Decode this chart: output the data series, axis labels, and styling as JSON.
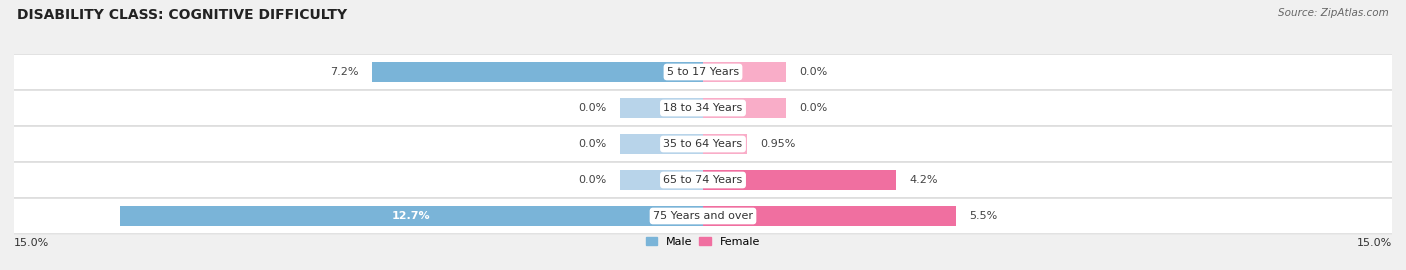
{
  "title": "DISABILITY CLASS: COGNITIVE DIFFICULTY",
  "source": "Source: ZipAtlas.com",
  "categories": [
    "5 to 17 Years",
    "18 to 34 Years",
    "35 to 64 Years",
    "65 to 74 Years",
    "75 Years and over"
  ],
  "male_values": [
    7.2,
    0.0,
    0.0,
    0.0,
    12.7
  ],
  "female_values": [
    0.0,
    0.0,
    0.95,
    4.2,
    5.5
  ],
  "male_labels": [
    "7.2%",
    "0.0%",
    "0.0%",
    "0.0%",
    "12.7%"
  ],
  "female_labels": [
    "0.0%",
    "0.0%",
    "0.95%",
    "4.2%",
    "5.5%"
  ],
  "male_color": "#7ab4d8",
  "female_color": "#f06fa0",
  "male_color_light": "#b8d4ea",
  "female_color_light": "#f9adc8",
  "placeholder_bar": 1.8,
  "axis_max": 15.0,
  "axis_label_left": "15.0%",
  "axis_label_right": "15.0%",
  "background_color": "#f0f0f0",
  "row_bg_color": "#ffffff",
  "title_fontsize": 10,
  "label_fontsize": 8,
  "cat_label_fontsize": 8,
  "legend_male": "Male",
  "legend_female": "Female"
}
